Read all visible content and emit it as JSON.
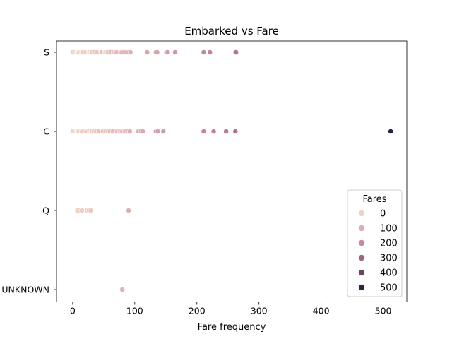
{
  "chart_data": {
    "type": "scatter",
    "title": "Embarked vs Fare",
    "xlabel": "Fare frequency",
    "ylabel": "",
    "xlim": [
      -26,
      538
    ],
    "x_ticks": [
      0,
      100,
      200,
      300,
      400,
      500
    ],
    "categories": [
      "S",
      "C",
      "Q",
      "UNKNOWN"
    ],
    "grid": false,
    "legend": {
      "title": "Fares",
      "placement": "lower-right",
      "entries": [
        {
          "label": "0",
          "value": 0
        },
        {
          "label": "100",
          "value": 100
        },
        {
          "label": "200",
          "value": 200
        },
        {
          "label": "300",
          "value": 300
        },
        {
          "label": "400",
          "value": 400
        },
        {
          "label": "500",
          "value": 500
        }
      ]
    },
    "hue_range": [
      0,
      512
    ],
    "colors": {
      "low": "#f0d2c2",
      "mid": "#c07f9a",
      "high": "#2d1e3e"
    },
    "points": [
      {
        "category": "S",
        "x": [
          0,
          4,
          7,
          8,
          9,
          10,
          13,
          15,
          16,
          21,
          26,
          27,
          30,
          31,
          35,
          39,
          46,
          47,
          52,
          53,
          55,
          57,
          61,
          66,
          69,
          71,
          77,
          79,
          82,
          86,
          90,
          93,
          120,
          134,
          136,
          151,
          153,
          165,
          211,
          221,
          262,
          263
        ]
      },
      {
        "category": "C",
        "x": [
          0,
          5,
          7,
          8,
          10,
          13,
          15,
          17,
          22,
          24,
          27,
          30,
          31,
          34,
          38,
          42,
          49,
          53,
          57,
          60,
          65,
          70,
          72,
          76,
          78,
          80,
          82,
          84,
          86,
          89,
          92,
          106,
          110,
          113,
          134,
          137,
          146,
          211,
          227,
          247,
          262,
          512
        ]
      },
      {
        "category": "Q",
        "x": [
          7,
          8,
          12,
          15,
          23,
          26,
          29,
          90
        ]
      },
      {
        "category": "UNKNOWN",
        "x": [
          80
        ]
      }
    ]
  }
}
